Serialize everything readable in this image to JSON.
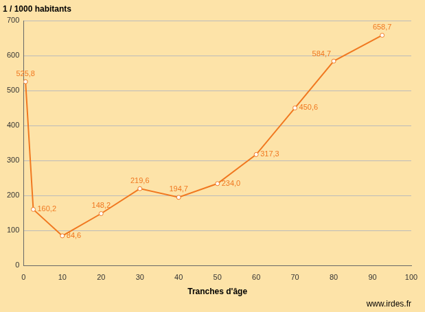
{
  "chart_data": {
    "type": "line",
    "title": "1 / 1000 habitants",
    "x_label": "Tranches d'âge",
    "source": "www.irdes.fr",
    "x": [
      0.5,
      2.5,
      10,
      20,
      30,
      40,
      50,
      60,
      70,
      80,
      92.5
    ],
    "values": [
      525.8,
      160.2,
      84.6,
      148.2,
      219.6,
      194.7,
      234.0,
      317.3,
      450.6,
      584.7,
      658.7
    ],
    "value_labels": [
      "525,8",
      "160,2",
      "84,6",
      "148,2",
      "219,6",
      "194,7",
      "234,0",
      "317,3",
      "450,6",
      "584,7",
      "658,7"
    ],
    "color": "#f07820",
    "marker": "circle",
    "line_style": "solid",
    "data_labels": true,
    "grid": true,
    "xlim": [
      0,
      100
    ],
    "xticks": [
      0,
      10,
      20,
      30,
      40,
      50,
      60,
      70,
      80,
      90,
      100
    ],
    "ylim": [
      0,
      700
    ],
    "yticks": [
      0,
      100,
      200,
      300,
      400,
      500,
      600,
      700
    ]
  }
}
